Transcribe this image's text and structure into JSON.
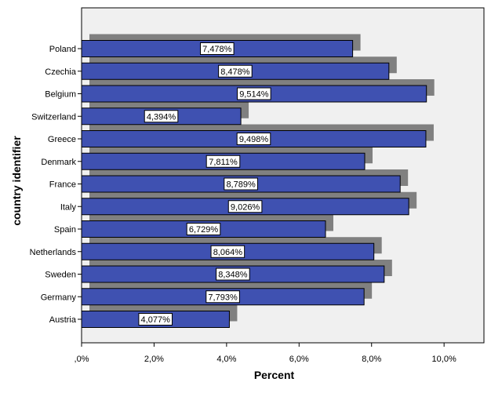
{
  "chart_data": {
    "type": "bar",
    "orientation": "horizontal",
    "categories": [
      "Poland",
      "Czechia",
      "Belgium",
      "Switzerland",
      "Greece",
      "Denmark",
      "France",
      "Italy",
      "Spain",
      "Netherlands",
      "Sweden",
      "Germany",
      "Austria"
    ],
    "values": [
      7.478,
      8.478,
      9.514,
      4.394,
      9.498,
      7.811,
      8.789,
      9.026,
      6.729,
      8.064,
      8.348,
      7.793,
      4.077
    ],
    "data_labels": [
      "7,478%",
      "8,478%",
      "9,514%",
      "4,394%",
      "9,498%",
      "7,811%",
      "8,789%",
      "9,026%",
      "6,729%",
      "8,064%",
      "8,348%",
      "7,793%",
      "4,077%"
    ],
    "x_ticks": [
      0,
      2,
      4,
      6,
      8,
      10
    ],
    "x_tick_labels": [
      ",0%",
      "2,0%",
      "4,0%",
      "6,0%",
      "8,0%",
      "10,0%"
    ],
    "xlim": [
      0,
      11.1
    ],
    "xlabel": "Percent",
    "ylabel": "country identifier",
    "title": "",
    "grid": false,
    "legend": "none",
    "bar_color": "#3f51b1",
    "shadow_color": "#808080",
    "plot_background": "#f0f0f0"
  }
}
